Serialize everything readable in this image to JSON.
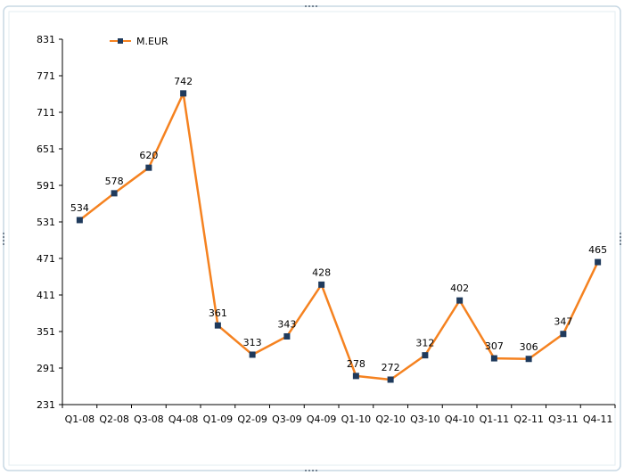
{
  "colors": {
    "line": "#F58220",
    "marker": "#1F3A5C",
    "axis": "#000000",
    "frame": "#C8D8E4",
    "frame_handle": "#556677"
  },
  "chart_data": {
    "type": "line",
    "categories": [
      "Q1-08",
      "Q2-08",
      "Q3-08",
      "Q4-08",
      "Q1-09",
      "Q2-09",
      "Q3-09",
      "Q4-09",
      "Q1-10",
      "Q2-10",
      "Q3-10",
      "Q4-10",
      "Q1-11",
      "Q2-11",
      "Q3-11",
      "Q4-11"
    ],
    "series": [
      {
        "name": "M.EUR",
        "values": [
          534,
          578,
          620,
          742,
          361,
          313,
          343,
          428,
          278,
          272,
          312,
          402,
          307,
          306,
          347,
          465
        ]
      }
    ],
    "data_labels": [
      "534",
      "578",
      "620",
      "742",
      "361",
      "313",
      "343",
      "428",
      "278",
      "272",
      "312",
      "402",
      "307",
      "306",
      "347",
      "465"
    ],
    "y_ticks": [
      "831",
      "771",
      "711",
      "651",
      "591",
      "531",
      "471",
      "411",
      "351",
      "291",
      "231"
    ],
    "ylim": [
      231,
      831
    ],
    "grid": false,
    "legend": {
      "label": "M.EUR",
      "position": "top-left"
    }
  }
}
